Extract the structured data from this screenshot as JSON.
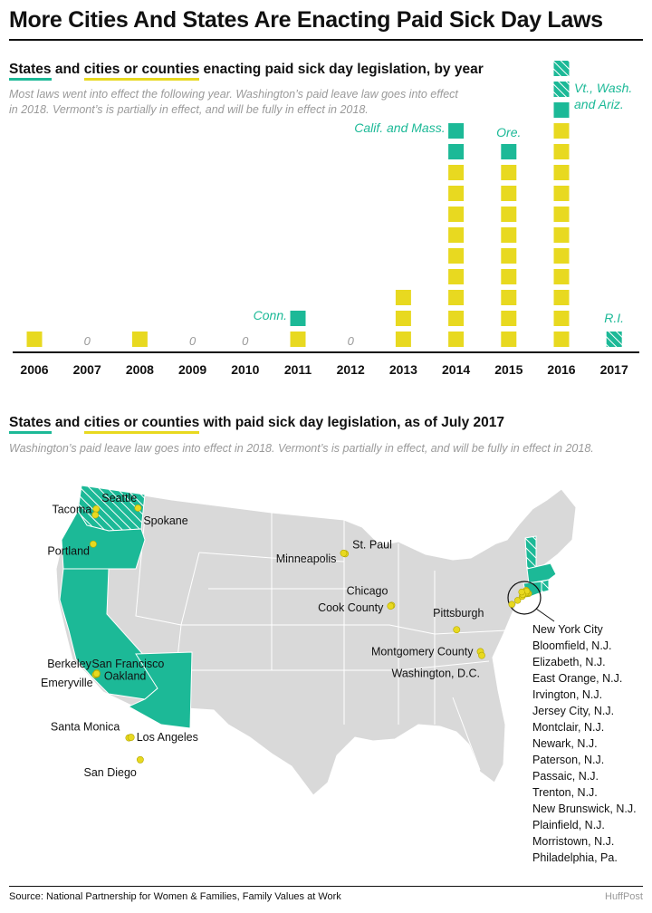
{
  "title": "More Cities And States Are Enacting Paid Sick Day Laws",
  "section1": {
    "heading": {
      "states": "States",
      "and": " and ",
      "cities": "cities or counties",
      "rest": " enacting paid sick day legislation, by year"
    },
    "note": "Most laws went into effect the following year. Washington’s paid leave law goes into effect in 2018. Vermont’s is partially in effect, and will be fully in effect in 2018."
  },
  "section2": {
    "heading": {
      "states": "States",
      "and": " and ",
      "cities": "cities or counties",
      "rest": " with paid sick day legislation, as of July 2017"
    },
    "note": "Washington’s paid leave law goes into effect in 2018. Vermont’s is partially in effect, and will be fully in effect in 2018."
  },
  "colors": {
    "state": "#1cb997",
    "city": "#e8d920",
    "land": "#d9d9d9",
    "zero": "#9a9a9a"
  },
  "chart_data": {
    "type": "bar",
    "stacked": true,
    "unit_marks": true,
    "categories": [
      "2006",
      "2007",
      "2008",
      "2009",
      "2010",
      "2011",
      "2012",
      "2013",
      "2014",
      "2015",
      "2016",
      "2017"
    ],
    "series": [
      {
        "name": "cities or counties",
        "values": [
          1,
          0,
          1,
          0,
          0,
          1,
          0,
          3,
          9,
          9,
          11,
          0
        ]
      },
      {
        "name": "States",
        "values": [
          0,
          0,
          0,
          0,
          0,
          1,
          0,
          0,
          2,
          1,
          1,
          0
        ]
      },
      {
        "name": "States (not fully in effect)",
        "values": [
          0,
          0,
          0,
          0,
          0,
          0,
          0,
          0,
          0,
          0,
          2,
          1
        ]
      }
    ],
    "zero_label": "0",
    "annotations": [
      {
        "category": "2011",
        "text": "Conn."
      },
      {
        "category": "2014",
        "text": "Calif. and Mass."
      },
      {
        "category": "2015",
        "text": "Ore."
      },
      {
        "category": "2016",
        "text": "Vt., Wash. and Ariz."
      },
      {
        "category": "2017",
        "text": "R.I."
      }
    ]
  },
  "map": {
    "cities": [
      {
        "name": "Seattle",
        "lon": -122.33,
        "lat": 47.61
      },
      {
        "name": "Tacoma",
        "lon": -122.44,
        "lat": 47.25
      },
      {
        "name": "Spokane",
        "lon": -117.43,
        "lat": 47.66
      },
      {
        "name": "Portland",
        "lon": -122.68,
        "lat": 45.52
      },
      {
        "name": "San Francisco",
        "lon": -122.42,
        "lat": 37.77
      },
      {
        "name": "Oakland",
        "lon": -122.27,
        "lat": 37.8
      },
      {
        "name": "Berkeley",
        "lon": -122.27,
        "lat": 37.87
      },
      {
        "name": "Emeryville",
        "lon": -122.29,
        "lat": 37.83
      },
      {
        "name": "Santa Monica",
        "lon": -118.49,
        "lat": 34.02
      },
      {
        "name": "Los Angeles",
        "lon": -118.24,
        "lat": 34.05
      },
      {
        "name": "San Diego",
        "lon": -117.16,
        "lat": 32.72
      },
      {
        "name": "St. Paul",
        "lon": -93.09,
        "lat": 44.95
      },
      {
        "name": "Minneapolis",
        "lon": -93.27,
        "lat": 44.98
      },
      {
        "name": "Chicago",
        "lon": -87.63,
        "lat": 41.88
      },
      {
        "name": "Cook County",
        "lon": -87.75,
        "lat": 41.84
      },
      {
        "name": "Pittsburgh",
        "lon": -79.99,
        "lat": 40.44
      },
      {
        "name": "Montgomery County",
        "lon": -77.2,
        "lat": 39.14
      },
      {
        "name": "Washington, D.C.",
        "lon": -77.04,
        "lat": 38.91
      }
    ],
    "nj_list": [
      "New York City",
      "Bloomfield, N.J.",
      "Elizabeth, N.J.",
      "East Orange, N.J.",
      "Irvington, N.J.",
      "Jersey City, N.J.",
      "Montclair, N.J.",
      "Newark, N.J.",
      "Paterson, N.J.",
      "Passaic, N.J.",
      "Trenton, N.J.",
      "New Brunswick, N.J.",
      "Plainfield, N.J.",
      "Morristown, N.J.",
      "Philadelphia, Pa."
    ]
  },
  "source": "Source: National Partnership for Women & Families, Family Values at Work",
  "brand": "HuffPost"
}
